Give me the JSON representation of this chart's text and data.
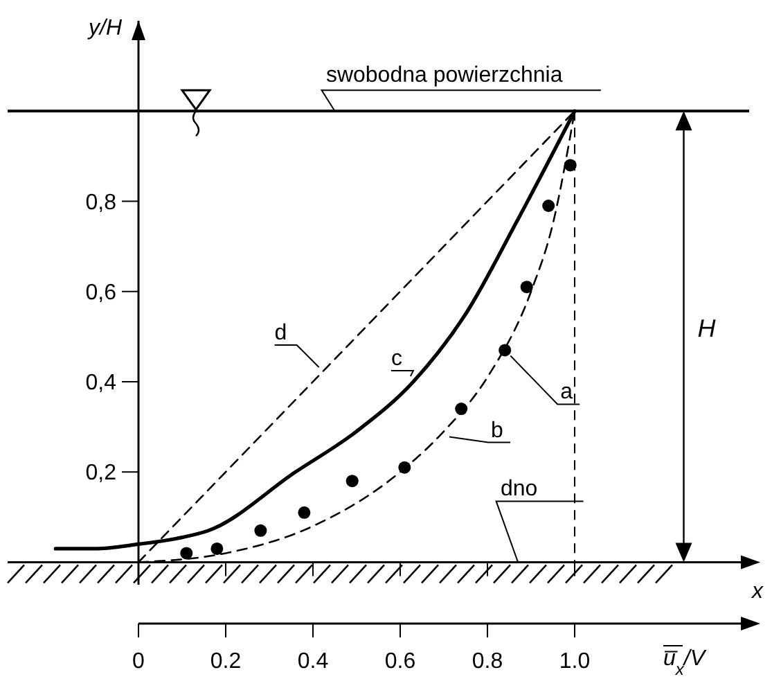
{
  "chart_data": {
    "type": "line",
    "xlabel": "u̅$_{x}$/V",
    "ylabel": "y/H",
    "xlim": [
      -0.3,
      1.4
    ],
    "ylim": [
      -0.05,
      1.2
    ],
    "xticks": [
      0,
      {
        "value": 0.2,
        "label": "0.2"
      },
      {
        "value": 0.4,
        "label": "0.4"
      },
      {
        "value": 0.6,
        "label": "0.6"
      },
      {
        "value": 0.8,
        "label": "0.8"
      },
      {
        "value": 1,
        "label": "1.0"
      }
    ],
    "yticks": [
      {
        "value": 0.2,
        "label": "0,2"
      },
      {
        "value": 0.4,
        "label": "0,4"
      },
      {
        "value": 0.6,
        "label": "0,6"
      },
      {
        "value": 0.8,
        "label": "0,8"
      }
    ],
    "series": [
      {
        "name": "a",
        "type": "scatter",
        "marker": "circle",
        "color": "#000000",
        "x": [
          0.11,
          0.18,
          0.28,
          0.38,
          0.49,
          0.61,
          0.74,
          0.84,
          0.89,
          0.94,
          0.99
        ],
        "values": [
          0.02,
          0.03,
          0.07,
          0.11,
          0.18,
          0.21,
          0.34,
          0.47,
          0.61,
          0.79,
          0.88
        ]
      },
      {
        "name": "b",
        "line_style": "dashed",
        "color": "#000000",
        "x": [
          0,
          0.2,
          0.4,
          0.6,
          0.7,
          0.8,
          0.9,
          0.95,
          1
        ],
        "values": [
          0,
          0.02,
          0.08,
          0.2,
          0.29,
          0.41,
          0.6,
          0.75,
          1
        ]
      },
      {
        "name": "c",
        "line_style": "solid",
        "color": "#000000",
        "x": [
          -0.19,
          -0.1,
          0,
          0.1,
          0.16,
          0.36,
          0.5,
          0.63,
          0.75,
          0.87,
          1
        ],
        "values": [
          0.03,
          0.03,
          0.04,
          0.055,
          0.07,
          0.2,
          0.29,
          0.4,
          0.55,
          0.76,
          1
        ]
      },
      {
        "name": "d",
        "line_style": "dashed",
        "color": "#000000",
        "x": [
          0,
          1
        ],
        "values": [
          0,
          1
        ]
      }
    ],
    "ref_lines": [
      {
        "axis": "y",
        "value": 1,
        "label": "swobodna powierzchnia",
        "line_style": "solid"
      },
      {
        "axis": "y",
        "value": 0,
        "label": "dno",
        "line_style": "solid"
      },
      {
        "axis": "x",
        "value": 1,
        "line_style": "dashed"
      }
    ],
    "annotations": [
      "x",
      "H"
    ],
    "legend": false,
    "grid": false
  }
}
